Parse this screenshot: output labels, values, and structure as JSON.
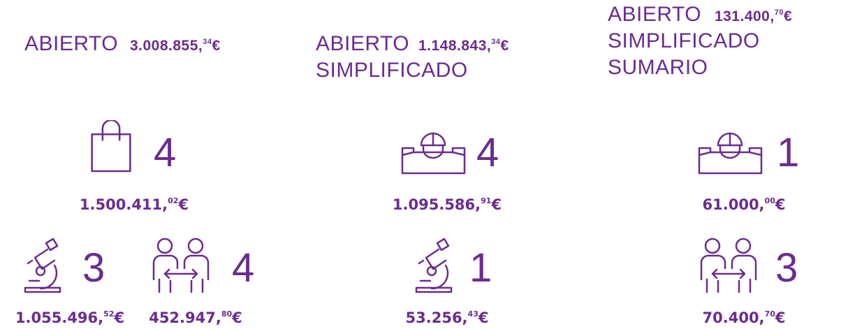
{
  "columns": [
    {
      "title": [
        "ABIERTO"
      ],
      "total": {
        "integer": "3.008.855,",
        "decimals": "34",
        "currency": "€"
      },
      "items": [
        {
          "count": 4,
          "amount": {
            "integer": "1.500.411,",
            "decimals": "02",
            "currency": "€"
          }
        },
        {
          "count": 3,
          "amount": {
            "integer": "1.055.496,",
            "decimals": "52",
            "currency": "€"
          }
        },
        {
          "count": 4,
          "amount": {
            "integer": "452.947,",
            "decimals": "80",
            "currency": "€"
          }
        }
      ]
    },
    {
      "title": [
        "ABIERTO",
        "SIMPLIFICADO"
      ],
      "total": {
        "integer": "1.148.843,",
        "decimals": "34",
        "currency": "€"
      },
      "items": [
        {
          "count": 4,
          "amount": {
            "integer": "1.095.586,",
            "decimals": "91",
            "currency": "€"
          }
        },
        {
          "count": 1,
          "amount": {
            "integer": "53.256,",
            "decimals": "43",
            "currency": "€"
          }
        }
      ]
    },
    {
      "title": [
        "ABIERTO",
        "SIMPLIFICADO",
        "SUMARIO"
      ],
      "total": {
        "integer": "131.400,",
        "decimals": "70",
        "currency": "€"
      },
      "items": [
        {
          "count": 1,
          "amount": {
            "integer": "61.000,",
            "decimals": "00",
            "currency": "€"
          }
        },
        {
          "count": 3,
          "amount": {
            "integer": "70.400,",
            "decimals": "70",
            "currency": "€"
          }
        }
      ]
    }
  ]
}
